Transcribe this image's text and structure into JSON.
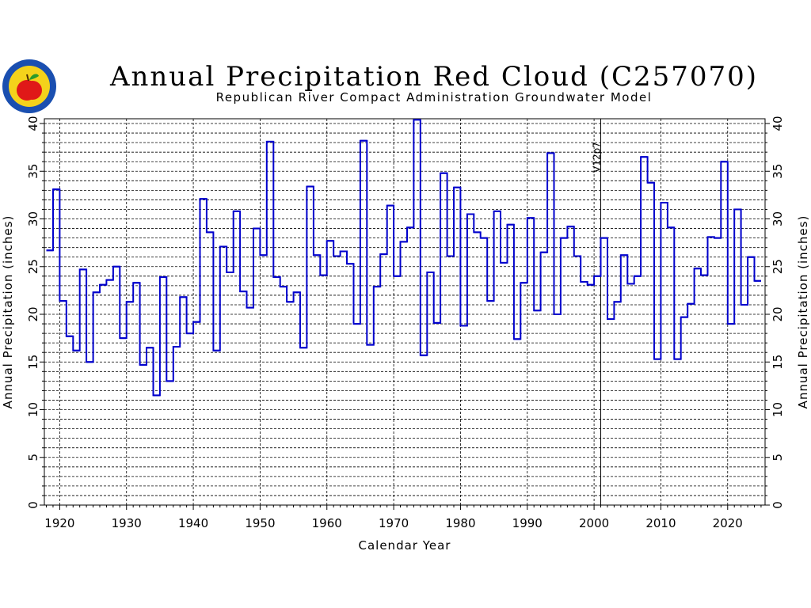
{
  "logo": {
    "icon": "apple-seal-icon",
    "ring_color": "#1a4fb0",
    "fill_color": "#f4d21b",
    "apple_color": "#e01818"
  },
  "chart_data": {
    "type": "line",
    "style": "step",
    "title": "Annual Precipitation Red Cloud (C257070)",
    "subtitle": "Republican River Compact Administration Groundwater Model",
    "xlabel": "Calendar Year",
    "ylabel": "Annual Precipitation (inches)",
    "ylabel_right": "Annual Precipitation (inches)",
    "xlim": [
      1917.7,
      2025.6
    ],
    "ylim": [
      0,
      40.5
    ],
    "xticks": [
      1920,
      1930,
      1940,
      1950,
      1960,
      1970,
      1980,
      1990,
      2000,
      2010,
      2020
    ],
    "yticks": [
      0,
      5,
      10,
      15,
      20,
      25,
      30,
      35,
      40
    ],
    "grid": true,
    "line_color": "#0000cc",
    "marker_line": {
      "x": 2001,
      "label": "V12p7"
    },
    "series": [
      {
        "x": [
          1918,
          1919,
          1920,
          1921,
          1922,
          1923,
          1924,
          1925,
          1926,
          1927,
          1928,
          1929,
          1930,
          1931,
          1932,
          1933,
          1934,
          1935,
          1936,
          1937,
          1938,
          1939,
          1940,
          1941,
          1942,
          1943,
          1944,
          1945,
          1946,
          1947,
          1948,
          1949,
          1950,
          1951,
          1952,
          1953,
          1954,
          1955,
          1956,
          1957,
          1958,
          1959,
          1960,
          1961,
          1962,
          1963,
          1964,
          1965,
          1966,
          1967,
          1968,
          1969,
          1970,
          1971,
          1972,
          1973,
          1974,
          1975,
          1976,
          1977,
          1978,
          1979,
          1980,
          1981,
          1982,
          1983,
          1984,
          1985,
          1986,
          1987,
          1988,
          1989,
          1990,
          1991,
          1992,
          1993,
          1994,
          1995,
          1996,
          1997,
          1998,
          1999,
          2000,
          2001,
          2002,
          2003,
          2004,
          2005,
          2006,
          2007,
          2008,
          2009,
          2010,
          2011,
          2012,
          2013,
          2014,
          2015,
          2016,
          2017,
          2018,
          2019,
          2020,
          2021,
          2022,
          2023,
          2024
        ],
        "values": [
          26.7,
          33.1,
          21.4,
          17.7,
          16.2,
          24.7,
          15.0,
          22.3,
          23.1,
          23.6,
          25.0,
          17.5,
          21.3,
          23.3,
          14.7,
          16.5,
          11.5,
          23.9,
          13.0,
          16.6,
          21.8,
          18.0,
          19.2,
          32.1,
          28.6,
          16.2,
          27.1,
          24.4,
          30.8,
          22.4,
          20.7,
          29.0,
          26.2,
          38.1,
          23.9,
          22.9,
          21.3,
          22.3,
          16.5,
          33.4,
          26.2,
          24.1,
          27.7,
          26.1,
          26.6,
          25.3,
          19.0,
          38.2,
          16.8,
          22.9,
          26.3,
          31.4,
          24.0,
          27.6,
          29.1,
          40.4,
          15.7,
          24.4,
          19.1,
          34.8,
          26.1,
          33.3,
          18.8,
          30.5,
          28.6,
          28.0,
          21.4,
          30.8,
          25.4,
          29.4,
          17.4,
          23.3,
          30.1,
          20.4,
          26.5,
          36.9,
          20.0,
          28.0,
          29.2,
          26.1,
          23.4,
          23.1,
          24.0,
          28.0,
          19.5,
          21.3,
          26.2,
          23.2,
          24.0,
          36.5,
          33.8,
          15.3,
          31.7,
          29.1,
          15.3,
          19.7,
          21.1,
          24.8,
          24.1,
          28.1,
          28.0,
          36.0,
          19.0,
          31.0,
          21.0,
          26.0,
          23.5
        ]
      }
    ]
  }
}
